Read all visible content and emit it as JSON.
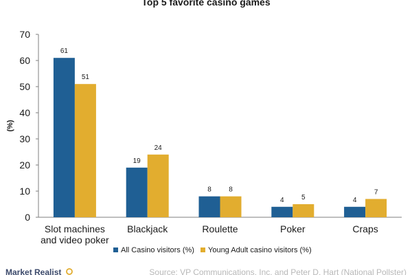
{
  "chart_data": {
    "type": "bar",
    "title": "Top 5 favorite casino games",
    "ylabel": "(%)",
    "xlabel": "",
    "ylim": [
      0,
      70
    ],
    "yticks": [
      0,
      10,
      20,
      30,
      40,
      50,
      60,
      70
    ],
    "categories": [
      [
        "Slot machines",
        "and video poker"
      ],
      [
        "Blackjack"
      ],
      [
        "Roulette"
      ],
      [
        "Poker"
      ],
      [
        "Craps"
      ]
    ],
    "series": [
      {
        "name": "All Casino visitors (%)",
        "color": "#1f5f94",
        "values": [
          61,
          19,
          8,
          4,
          4
        ]
      },
      {
        "name": "Young Adult casino visitors (%)",
        "color": "#e2ad2f",
        "values": [
          51,
          24,
          8,
          5,
          7
        ]
      }
    ],
    "grid": false,
    "legend_position": "bottom"
  },
  "source": "Source: VP Communications, Inc. and Peter D. Hart (National Pollster)",
  "brand": "Market Realist"
}
